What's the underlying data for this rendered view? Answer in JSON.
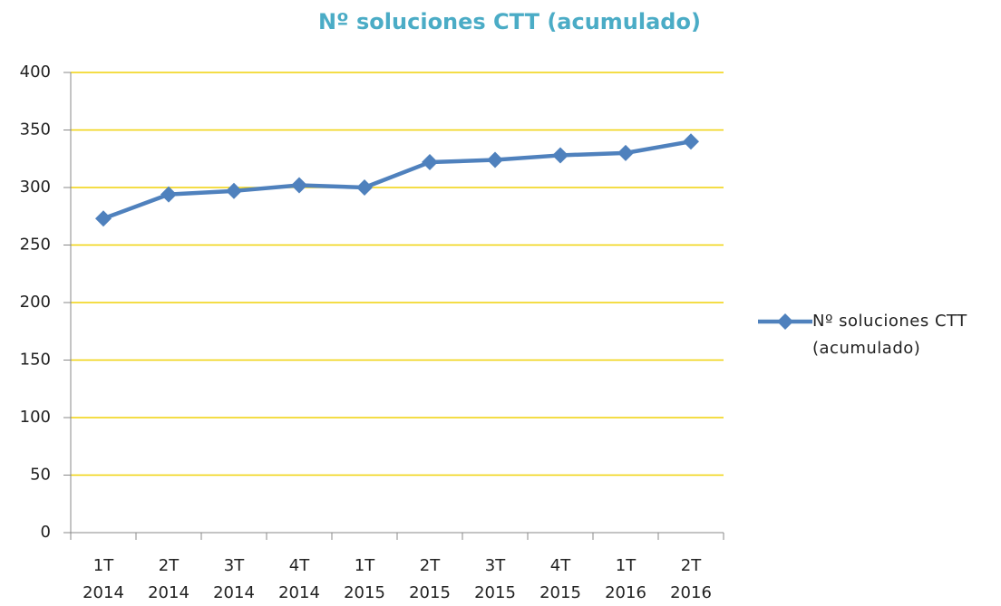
{
  "chart_data": {
    "type": "line",
    "title": "Nº soluciones CTT (acumulado)",
    "categories": [
      "1T 2014",
      "2T 2014",
      "3T 2014",
      "4T 2014",
      "1T 2015",
      "2T 2015",
      "3T 2015",
      "4T 2015",
      "1T 2016",
      "2T 2016"
    ],
    "series": [
      {
        "name": "Nº soluciones CTT (acumulado)",
        "color": "#4f81bd",
        "values": [
          273,
          294,
          297,
          302,
          300,
          322,
          324,
          328,
          330,
          340
        ]
      }
    ],
    "ylim": [
      0,
      400
    ],
    "yticks": [
      0,
      50,
      100,
      150,
      200,
      250,
      300,
      350,
      400
    ],
    "grid": true,
    "grid_color": "#f0d20a",
    "title_color": "#4bacc6",
    "legend": "right"
  }
}
